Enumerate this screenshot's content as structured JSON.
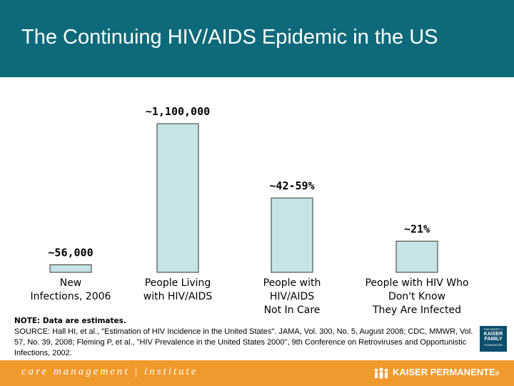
{
  "title": "The Continuing HIV/AIDS Epidemic in the US",
  "colors": {
    "title_bar": "#0e6a7a",
    "bar_fill": "#c6e4e6",
    "bar_stroke": "#333333",
    "footer_bar": "#f09a2e"
  },
  "chart_data": {
    "type": "bar",
    "categories": [
      [
        "New",
        "Infections, 2006"
      ],
      [
        "People Living",
        "with HIV/AIDS"
      ],
      [
        "People with",
        "HIV/AIDS",
        "Not In Care"
      ],
      [
        "People with HIV Who",
        "Don't Know",
        "They Are Infected"
      ]
    ],
    "values": [
      56000,
      1100000,
      550000,
      231000
    ],
    "data_labels": [
      "~56,000",
      "~1,100,000",
      "~42-59%",
      "~21%"
    ],
    "title": "",
    "xlabel": "",
    "ylabel": "",
    "ylim": [
      0,
      1100000
    ],
    "grid": false,
    "axes_visible": false
  },
  "notes": {
    "heading": "NOTE: Data are estimates.",
    "source": "SOURCE: Hall HI, et al., \"Estimation of HIV Incidence in the United States\". JAMA, Vol. 300, No. 5, August 2008; CDC, MMWR, Vol. 57, No. 39, 2008; Fleming P, et al., \"HIV Prevalence in the United States 2000\", 9th Conference on Retroviruses and Opportunistic Infections, 2002."
  },
  "kff_logo": {
    "line1": "THE HENRY J.",
    "line2": "KAISER",
    "line3": "FAMILY",
    "line4": "FOUNDATION"
  },
  "footer": {
    "institute": "care management | institute",
    "brand": "KAISER PERMANENTE",
    "brand_mark": "®"
  }
}
